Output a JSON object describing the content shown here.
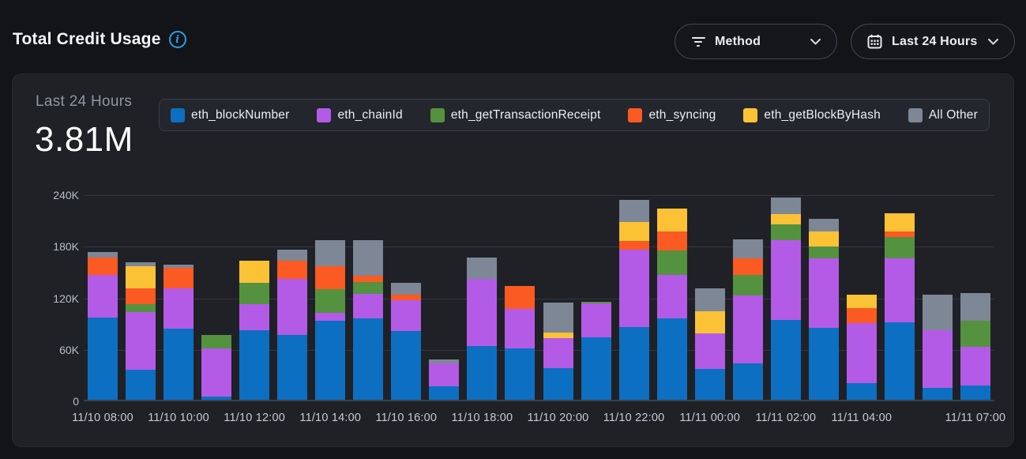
{
  "header": {
    "title": "Total Credit Usage",
    "method_filter": {
      "label": "Method",
      "icon": "filter-icon"
    },
    "time_range": {
      "label": "Last 24 Hours",
      "icon": "calendar-icon"
    }
  },
  "card": {
    "period_label": "Last 24 Hours",
    "total": "3.81M"
  },
  "chart_data": {
    "type": "bar",
    "stacked": true,
    "title": "Total Credit Usage - Last 24 Hours",
    "xlabel": "",
    "ylabel": "",
    "ylim": [
      0,
      240000
    ],
    "grid": true,
    "legend_position": "top",
    "categories": [
      "11/10 08:00",
      "11/10 09:00",
      "11/10 10:00",
      "11/10 11:00",
      "11/10 12:00",
      "11/10 13:00",
      "11/10 14:00",
      "11/10 15:00",
      "11/10 16:00",
      "11/10 17:00",
      "11/10 18:00",
      "11/10 19:00",
      "11/10 20:00",
      "11/10 21:00",
      "11/10 22:00",
      "11/10 23:00",
      "11/11 00:00",
      "11/11 01:00",
      "11/11 02:00",
      "11/11 03:00",
      "11/11 04:00",
      "11/11 05:00",
      "11/11 06:00",
      "11/11 07:00"
    ],
    "xticks": [
      {
        "label": "11/10 08:00",
        "index": 0
      },
      {
        "label": "11/10 10:00",
        "index": 2
      },
      {
        "label": "11/10 12:00",
        "index": 4
      },
      {
        "label": "11/10 14:00",
        "index": 6
      },
      {
        "label": "11/10 16:00",
        "index": 8
      },
      {
        "label": "11/10 18:00",
        "index": 10
      },
      {
        "label": "11/10 20:00",
        "index": 12
      },
      {
        "label": "11/10 22:00",
        "index": 14
      },
      {
        "label": "11/11 00:00",
        "index": 16
      },
      {
        "label": "11/11 02:00",
        "index": 18
      },
      {
        "label": "11/11 04:00",
        "index": 20
      },
      {
        "label": "11/11 07:00",
        "index": 23
      }
    ],
    "yticks": [
      {
        "label": "0",
        "value": 0
      },
      {
        "label": "60K",
        "value": 60000
      },
      {
        "label": "120K",
        "value": 120000
      },
      {
        "label": "180K",
        "value": 180000
      },
      {
        "label": "240K",
        "value": 240000
      }
    ],
    "series": [
      {
        "name": "eth_blockNumber",
        "color": "#0d6fc2",
        "values": [
          96000,
          35000,
          83000,
          4000,
          81000,
          75000,
          92000,
          95000,
          80000,
          16000,
          63000,
          60000,
          37000,
          73000,
          85000,
          95000,
          36000,
          42000,
          93000,
          84000,
          19000,
          90000,
          14000,
          17000
        ]
      },
      {
        "name": "eth_chainId",
        "color": "#b35be6",
        "values": [
          49000,
          67000,
          47000,
          56000,
          30000,
          66000,
          9000,
          28000,
          36000,
          26000,
          78000,
          46000,
          35000,
          39000,
          90000,
          50000,
          41000,
          79000,
          93000,
          81000,
          70000,
          75000,
          67000,
          45000
        ]
      },
      {
        "name": "eth_getTransactionReceipt",
        "color": "#55923f",
        "values": [
          0,
          9000,
          0,
          15000,
          25000,
          0,
          28000,
          14000,
          0,
          0,
          0,
          0,
          0,
          2000,
          0,
          29000,
          0,
          24000,
          18000,
          13000,
          0,
          24000,
          0,
          30000
        ]
      },
      {
        "name": "eth_syncing",
        "color": "#fb5a23",
        "values": [
          21000,
          19000,
          24000,
          0,
          0,
          21000,
          26000,
          7000,
          6000,
          0,
          0,
          26000,
          0,
          0,
          10000,
          22000,
          0,
          20000,
          0,
          0,
          18000,
          7000,
          0,
          0
        ]
      },
      {
        "name": "eth_getBlockByHash",
        "color": "#fcc236",
        "values": [
          0,
          25000,
          0,
          0,
          26000,
          0,
          0,
          0,
          0,
          0,
          0,
          0,
          6000,
          0,
          22000,
          27000,
          26000,
          0,
          12000,
          18000,
          15000,
          21000,
          0,
          0
        ]
      },
      {
        "name": "All Other",
        "color": "#7d8795",
        "values": [
          6000,
          5000,
          3000,
          0,
          0,
          13000,
          31000,
          42000,
          14000,
          5000,
          25000,
          0,
          35000,
          0,
          26000,
          0,
          27000,
          22000,
          19000,
          15000,
          0,
          0,
          41000,
          32000
        ]
      }
    ],
    "colors": {
      "accent_blue": "#2b9fe6",
      "page_background": "#121418",
      "card_background": "#1f2127",
      "legend_background": "#23262c"
    }
  }
}
